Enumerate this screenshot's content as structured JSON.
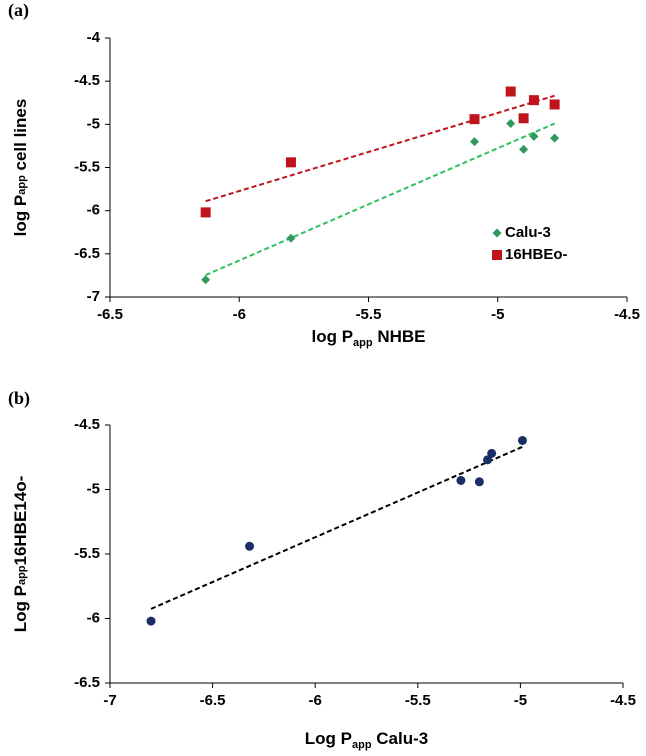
{
  "chart_data": [
    {
      "type": "scatter",
      "panel_label": "(a)",
      "xlabel": {
        "main": "log P",
        "subscript": "app",
        "rest": " NHBE"
      },
      "ylabel": {
        "main": "log P",
        "subscript": "app",
        "rest": " cell lines"
      },
      "xlim": [
        -6.5,
        -4.5
      ],
      "xticks": [
        -6.5,
        -6,
        -5.5,
        -5,
        -4.5
      ],
      "ylim": [
        -7,
        -4
      ],
      "yticks": [
        -7,
        -6.5,
        -6,
        -5.5,
        -5,
        -4.5,
        -4
      ],
      "legend": "lower right",
      "trendline": "linear",
      "grid": false,
      "series": [
        {
          "name": "Calu-3",
          "color": "#2e9a5c",
          "trend_color": "#2fbf60",
          "marker": "diamond",
          "x": [
            -6.13,
            -5.8,
            -5.09,
            -4.95,
            -4.9,
            -4.86,
            -4.78
          ],
          "values": [
            -6.8,
            -6.32,
            -5.2,
            -4.99,
            -5.29,
            -5.14,
            -5.16
          ]
        },
        {
          "name": "16HBEo-",
          "color": "#c0141c",
          "trend_color": "#c0141c",
          "marker": "square",
          "x": [
            -6.13,
            -5.8,
            -5.09,
            -4.95,
            -4.9,
            -4.86,
            -4.78
          ],
          "values": [
            -6.02,
            -5.44,
            -4.94,
            -4.62,
            -4.93,
            -4.72,
            -4.77
          ]
        }
      ]
    },
    {
      "type": "scatter",
      "panel_label": "(b)",
      "xlabel": {
        "main": "Log P",
        "subscript": "app",
        "rest": " Calu-3"
      },
      "ylabel": {
        "main": "Log P",
        "subscript": "app",
        "rest": "16HBE14o-"
      },
      "xlim": [
        -7,
        -4.5
      ],
      "xticks": [
        -7,
        -6.5,
        -6,
        -5.5,
        -5,
        -4.5
      ],
      "ylim": [
        -6.5,
        -4.5
      ],
      "yticks": [
        -6.5,
        -6,
        -5.5,
        -5,
        -4.5
      ],
      "trendline": "linear",
      "grid": false,
      "series": [
        {
          "color": "#1a2f66",
          "trend_color": "#000000",
          "marker": "circle",
          "x": [
            -6.8,
            -6.32,
            -5.29,
            -5.2,
            -5.16,
            -5.14,
            -4.99
          ],
          "values": [
            -6.02,
            -5.44,
            -4.93,
            -4.94,
            -4.77,
            -4.72,
            -4.62
          ]
        }
      ]
    }
  ]
}
